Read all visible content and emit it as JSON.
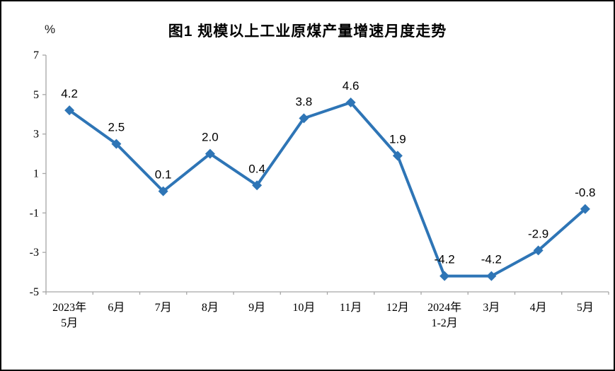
{
  "figure": {
    "title": "图1  规模以上工业原煤产量增速月度走势",
    "unit_label": "%"
  },
  "chart_data": {
    "type": "line",
    "title": "图1  规模以上工业原煤产量增速月度走势",
    "xlabel": "",
    "ylabel": "%",
    "categories": [
      "2023年\n5月",
      "6月",
      "7月",
      "8月",
      "9月",
      "10月",
      "11月",
      "12月",
      "2024年\n1-2月",
      "3月",
      "4月",
      "5月"
    ],
    "values": [
      4.2,
      2.5,
      0.1,
      2.0,
      0.4,
      3.8,
      4.6,
      1.9,
      -4.2,
      -4.2,
      -2.9,
      -0.8
    ],
    "labels": [
      "4.2",
      "2.5",
      "0.1",
      "2.0",
      "0.4",
      "3.8",
      "4.6",
      "1.9",
      "-4.2",
      "-4.2",
      "-2.9",
      "-0.8"
    ],
    "ylim": [
      -5,
      7
    ],
    "yticks": [
      7,
      5,
      3,
      1,
      -1,
      -3,
      -5
    ],
    "grid": false,
    "legend": false,
    "marker": "diamond",
    "line_color": "#2E75B6",
    "axis_color": "#A6A6A6",
    "text_color": "#000000"
  }
}
